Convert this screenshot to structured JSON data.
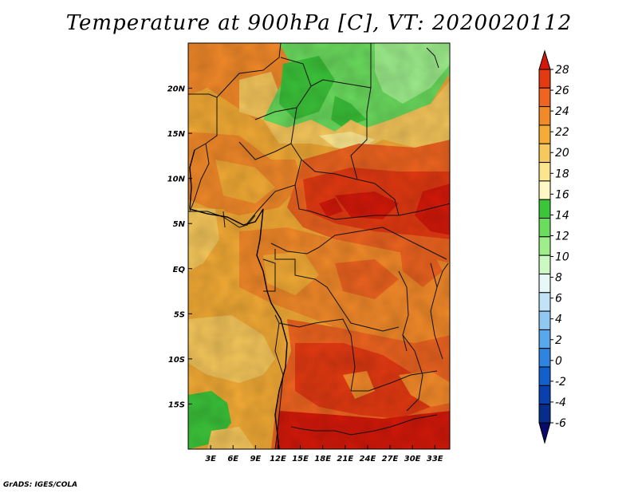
{
  "title": "Temperature at 900hPa [C], VT: 2020020112",
  "credit": "GrADS: IGES/COLA",
  "map": {
    "lon_range": [
      0,
      35
    ],
    "lat_range": [
      -20,
      25
    ],
    "lon_ticks": [
      "3E",
      "6E",
      "9E",
      "12E",
      "15E",
      "18E",
      "21E",
      "24E",
      "27E",
      "30E",
      "33E"
    ],
    "lat_ticks": [
      "20N",
      "15N",
      "10N",
      "5N",
      "EQ",
      "5S",
      "10S",
      "15S"
    ]
  },
  "colorbar": {
    "labels": [
      "28",
      "26",
      "24",
      "22",
      "20",
      "18",
      "16",
      "14",
      "12",
      "10",
      "8",
      "6",
      "4",
      "2",
      "0",
      "-2",
      "-4",
      "-6"
    ],
    "colors": [
      "#d4190a",
      "#e43a12",
      "#ee6420",
      "#f38a2a",
      "#f4ac36",
      "#f7c85c",
      "#fbe68e",
      "#fdf8c4",
      "#3cc43a",
      "#6bdc5e",
      "#9eee8c",
      "#ccf8c2",
      "#e6f8f8",
      "#c2e2f8",
      "#90c8f4",
      "#5aa8ec",
      "#2e84e0",
      "#1260cc",
      "#0a40ac",
      "#062c8c",
      "#0a0a6a"
    ]
  }
}
